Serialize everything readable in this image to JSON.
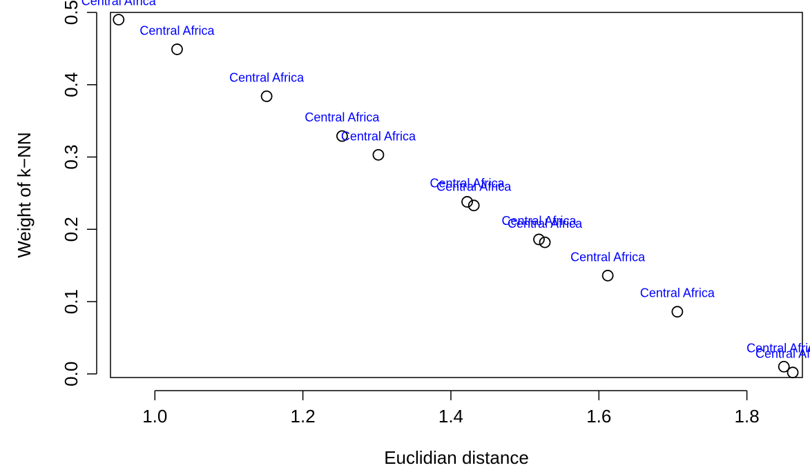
{
  "chart_data": {
    "type": "scatter",
    "title": "",
    "xlabel": "Euclidian distance",
    "ylabel": "Weight of k−NN",
    "xlim": [
      0.94,
      1.875
    ],
    "ylim": [
      -0.005,
      0.5
    ],
    "xticks": [
      1.0,
      1.2,
      1.4,
      1.6,
      1.8
    ],
    "xtick_labels": [
      "1.0",
      "1.2",
      "1.4",
      "1.6",
      "1.8"
    ],
    "yticks": [
      0.0,
      0.1,
      0.2,
      0.3,
      0.4,
      0.5
    ],
    "ytick_labels": [
      "0.0",
      "0.1",
      "0.2",
      "0.3",
      "0.4",
      "0.5"
    ],
    "grid": false,
    "point_color": "#000000",
    "label_color": "#0000FF",
    "points": [
      {
        "x": 0.951,
        "y": 0.49,
        "label": "Central Africa"
      },
      {
        "x": 1.03,
        "y": 0.449,
        "label": "Central Africa"
      },
      {
        "x": 1.151,
        "y": 0.384,
        "label": "Central Africa"
      },
      {
        "x": 1.253,
        "y": 0.329,
        "label": "Central Africa"
      },
      {
        "x": 1.302,
        "y": 0.303,
        "label": "Central Africa"
      },
      {
        "x": 1.422,
        "y": 0.238,
        "label": "Central Africa"
      },
      {
        "x": 1.431,
        "y": 0.233,
        "label": "Central Africa"
      },
      {
        "x": 1.519,
        "y": 0.186,
        "label": "Central Africa"
      },
      {
        "x": 1.527,
        "y": 0.182,
        "label": "Central Africa"
      },
      {
        "x": 1.612,
        "y": 0.136,
        "label": "Central Africa"
      },
      {
        "x": 1.706,
        "y": 0.086,
        "label": "Central Africa"
      },
      {
        "x": 1.85,
        "y": 0.01,
        "label": "Central Africa"
      },
      {
        "x": 1.862,
        "y": 0.002,
        "label": "Central Africa"
      }
    ]
  }
}
